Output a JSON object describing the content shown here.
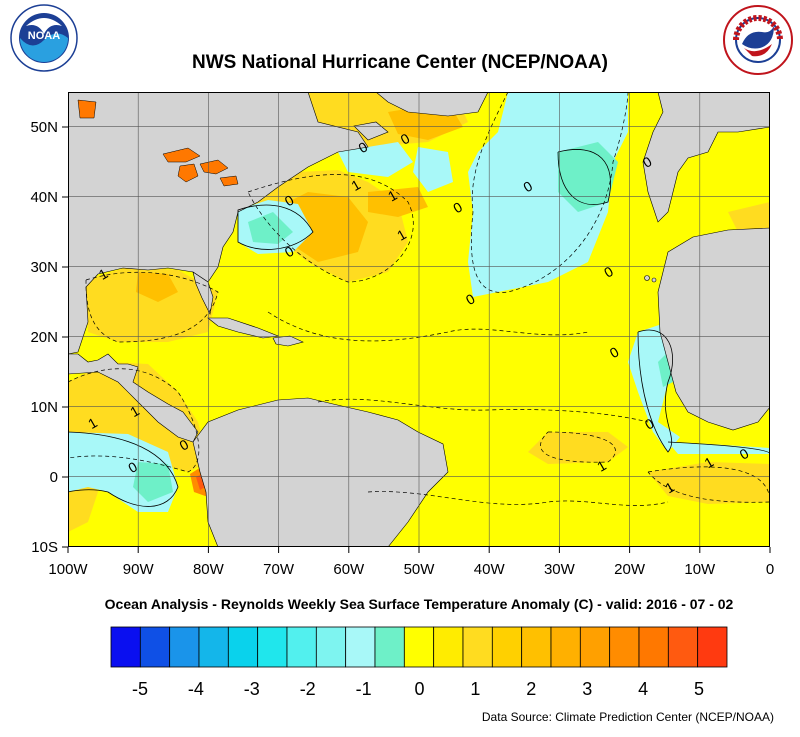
{
  "title": "NWS National Hurricane Center (NCEP/NOAA)",
  "subtitle": "Ocean Analysis - Reynolds Weekly Sea Surface Temperature Anomaly (C) - valid: 2016 - 07 - 02",
  "source": "Data Source: Climate Prediction Center (NCEP/NOAA)",
  "logos": {
    "noaa": {
      "icon": "noaa-logo",
      "text": "NOAA",
      "ring_text": "NATIONAL OCEANIC AND ATMOSPHERIC ADMINISTRATION · U.S. DEPARTMENT OF COMMERCE"
    },
    "nws": {
      "icon": "nws-logo",
      "ring_text": "NATIONAL WEATHER SERVICE"
    }
  },
  "axes": {
    "lon_labels": [
      "100W",
      "90W",
      "80W",
      "70W",
      "60W",
      "50W",
      "40W",
      "30W",
      "20W",
      "10W",
      "0"
    ],
    "lat_labels": [
      "50N",
      "40N",
      "30N",
      "20N",
      "10N",
      "0",
      "10S"
    ]
  },
  "contour_labels": [
    {
      "text": "0",
      "lon": -68.5,
      "lat": 39.5
    },
    {
      "text": "0",
      "lon": -68.5,
      "lat": 32.2
    },
    {
      "text": "1",
      "lon": -59.0,
      "lat": 41.7
    },
    {
      "text": "1",
      "lon": -53.8,
      "lat": 40.2
    },
    {
      "text": "1",
      "lon": -52.5,
      "lat": 34.6
    },
    {
      "text": "0",
      "lon": -52.0,
      "lat": 48.3
    },
    {
      "text": "0",
      "lon": -58.0,
      "lat": 47.1
    },
    {
      "text": "0",
      "lon": -44.5,
      "lat": 38.5
    },
    {
      "text": "0",
      "lon": -34.5,
      "lat": 41.5
    },
    {
      "text": "0",
      "lon": -17.5,
      "lat": 45.0
    },
    {
      "text": "1",
      "lon": -95.0,
      "lat": 29.0
    },
    {
      "text": "0",
      "lon": -42.7,
      "lat": 25.4
    },
    {
      "text": "0",
      "lon": -23.0,
      "lat": 29.3
    },
    {
      "text": "0",
      "lon": -22.2,
      "lat": 17.8
    },
    {
      "text": "0",
      "lon": -17.2,
      "lat": 7.6
    },
    {
      "text": "1",
      "lon": -96.5,
      "lat": 7.7
    },
    {
      "text": "1",
      "lon": -90.5,
      "lat": 9.4
    },
    {
      "text": "0",
      "lon": -83.5,
      "lat": 4.6
    },
    {
      "text": "0",
      "lon": -90.8,
      "lat": 1.4
    },
    {
      "text": "1",
      "lon": -24.0,
      "lat": 1.6
    },
    {
      "text": "1",
      "lon": -8.7,
      "lat": 2.1
    },
    {
      "text": "1",
      "lon": -14.3,
      "lat": -1.5
    },
    {
      "text": "0",
      "lon": -3.7,
      "lat": 3.3
    }
  ],
  "colorbar": {
    "labels": [
      "-5",
      "-4",
      "-3",
      "-2",
      "-1",
      "0",
      "1",
      "2",
      "3",
      "4",
      "5"
    ],
    "colors": [
      "#0a0ff0",
      "#0f50e6",
      "#1a94ea",
      "#14b6ea",
      "#0ad2ec",
      "#20e6ec",
      "#52f0ee",
      "#7ef4f0",
      "#a8f8f8",
      "#6ef0c8",
      "#ffff00",
      "#ffec00",
      "#ffdc20",
      "#ffd000",
      "#ffc000",
      "#ffb000",
      "#ffa000",
      "#ff8c00",
      "#ff7800",
      "#ff5a10",
      "#ff3a10"
    ]
  },
  "map_colors": {
    "land": "#d3d3d3",
    "anom_0_1": "#ffff00",
    "anom_1_2": "#ffdc20",
    "anom_2_3": "#ffc000",
    "anom_3_4": "#ff8c00",
    "anom_4_5": "#ff5a10",
    "anom_m1_0": "#a8f8f8",
    "anom_m2_m1": "#6ef0c8",
    "anom_m3_m2": "#20e6ec"
  }
}
